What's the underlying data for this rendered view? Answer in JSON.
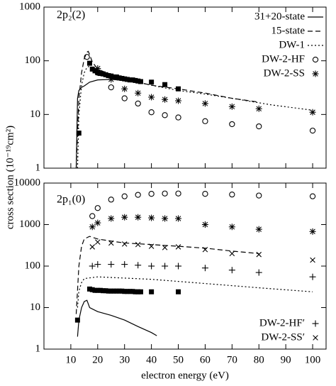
{
  "chart_data": [
    {
      "type": "line",
      "label": "2p₂(2)",
      "ylabel": "cross section (10⁻¹⁹cm²)",
      "log_y": true,
      "xlim": [
        0,
        105
      ],
      "xticks": [
        10,
        20,
        30,
        40,
        50,
        60,
        70,
        80,
        90,
        100
      ],
      "show_xtick_labels": false,
      "ylim": [
        1,
        1000
      ],
      "yticks": [
        1,
        10,
        100,
        1000
      ],
      "legend": "upper right",
      "series": [
        {
          "name": "31+20-state",
          "kind": "line",
          "dash": "solid",
          "color": "#000000",
          "x": [
            12,
            12.5,
            13,
            14,
            15,
            17,
            20,
            25,
            30,
            35,
            36
          ],
          "values": [
            1,
            20,
            28,
            32,
            34,
            40,
            44,
            45,
            43,
            40,
            38
          ]
        },
        {
          "name": "15-state",
          "kind": "line",
          "dash": "dashed",
          "color": "#000000",
          "x": [
            12,
            13,
            14,
            15,
            16,
            16.5,
            17,
            18,
            20,
            25,
            30,
            35,
            40,
            50,
            60,
            70,
            80
          ],
          "values": [
            1,
            20,
            60,
            110,
            145,
            150,
            130,
            95,
            70,
            55,
            45,
            40,
            35,
            30,
            25,
            20,
            17
          ]
        },
        {
          "name": "DW-1",
          "kind": "line",
          "dash": "dotted",
          "color": "#000000",
          "x": [
            12.5,
            13,
            14,
            15,
            16,
            17,
            18,
            20,
            25,
            30,
            40,
            50,
            60,
            70,
            85,
            100
          ],
          "values": [
            1,
            10,
            35,
            60,
            75,
            80,
            72,
            60,
            52,
            45,
            35,
            28,
            24,
            20,
            15,
            12
          ]
        },
        {
          "name": "DW-2-HF",
          "kind": "points",
          "marker": "circle",
          "color": "#000000",
          "x": [
            16,
            20,
            25,
            30,
            35,
            40,
            45,
            50,
            60,
            70,
            80,
            100
          ],
          "values": [
            118,
            60,
            32,
            20,
            16,
            11,
            9.7,
            8.8,
            7.5,
            6.6,
            6,
            5
          ]
        },
        {
          "name": "DW-2-SS",
          "kind": "points",
          "marker": "asterisk",
          "color": "#000000",
          "x": [
            20,
            25,
            30,
            35,
            40,
            45,
            50,
            60,
            70,
            80,
            100
          ],
          "values": [
            72,
            45,
            30,
            25,
            21,
            19,
            18,
            16,
            14,
            12.8,
            11
          ]
        },
        {
          "kind": "points",
          "marker": "square",
          "color": "#000000",
          "x": [
            13,
            17,
            18,
            19,
            20,
            21,
            22,
            23,
            24,
            25,
            26,
            27,
            28,
            29,
            30,
            31,
            32,
            33,
            34,
            35,
            36,
            40,
            45,
            50
          ],
          "values": [
            4.5,
            90,
            70,
            65,
            60,
            58,
            57,
            55,
            53,
            52,
            50,
            50,
            48,
            47,
            46,
            45,
            44,
            44,
            43,
            42,
            41,
            40,
            36,
            30
          ]
        }
      ]
    },
    {
      "type": "line",
      "label": "2p₁(0)",
      "xlabel": "electron energy (eV)",
      "log_y": true,
      "xlim": [
        0,
        105
      ],
      "xticks": [
        10,
        20,
        30,
        40,
        50,
        60,
        70,
        80,
        90,
        100
      ],
      "show_xtick_labels": true,
      "ylim": [
        1,
        10000
      ],
      "yticks": [
        1,
        10,
        100,
        1000,
        10000
      ],
      "legend": "lower right",
      "series": [
        {
          "kind": "line",
          "dash": "solid",
          "color": "#000000",
          "x": [
            12.5,
            13,
            14,
            15,
            16,
            17,
            20,
            25,
            30,
            35,
            40,
            42
          ],
          "values": [
            2,
            5,
            10,
            14,
            15,
            10,
            8,
            6.5,
            5,
            3.5,
            2.5,
            2.1
          ]
        },
        {
          "kind": "line",
          "dash": "dashed",
          "color": "#000000",
          "x": [
            12,
            13,
            14,
            15,
            17,
            20,
            25,
            30,
            40,
            50,
            60,
            70,
            80
          ],
          "values": [
            7,
            100,
            300,
            450,
            520,
            450,
            400,
            360,
            330,
            300,
            270,
            230,
            200
          ]
        },
        {
          "kind": "line",
          "dash": "dotted",
          "color": "#000000",
          "x": [
            12.5,
            13,
            14,
            15,
            20,
            40,
            60,
            80,
            100
          ],
          "values": [
            10,
            25,
            40,
            50,
            55,
            48,
            38,
            30,
            24
          ]
        },
        {
          "kind": "points",
          "marker": "circle",
          "color": "#000000",
          "x": [
            18,
            20,
            25,
            30,
            35,
            40,
            45,
            50,
            60,
            70,
            80,
            100
          ],
          "values": [
            1600,
            2500,
            4000,
            4800,
            5200,
            5500,
            5600,
            5600,
            5500,
            5300,
            5000,
            4800
          ]
        },
        {
          "kind": "points",
          "marker": "asterisk",
          "color": "#000000",
          "x": [
            18,
            20,
            25,
            30,
            35,
            40,
            45,
            50,
            60,
            70,
            80,
            100
          ],
          "values": [
            880,
            1100,
            1400,
            1500,
            1500,
            1450,
            1400,
            1400,
            1000,
            880,
            770,
            680
          ]
        },
        {
          "name": "DW-2-HF′",
          "kind": "points",
          "marker": "plus",
          "color": "#000000",
          "x": [
            18,
            20,
            25,
            30,
            35,
            40,
            45,
            50,
            60,
            70,
            80,
            100
          ],
          "values": [
            100,
            110,
            110,
            110,
            105,
            100,
            100,
            100,
            90,
            80,
            70,
            55
          ]
        },
        {
          "name": "DW-2-SS′",
          "kind": "points",
          "marker": "cross",
          "color": "#000000",
          "x": [
            18,
            20,
            25,
            30,
            35,
            40,
            45,
            50,
            60,
            70,
            80,
            100
          ],
          "values": [
            290,
            380,
            360,
            340,
            330,
            300,
            280,
            290,
            250,
            200,
            190,
            140
          ]
        },
        {
          "kind": "points",
          "marker": "square",
          "color": "#000000",
          "x": [
            12.5,
            17,
            18,
            19,
            20,
            21,
            22,
            23,
            24,
            25,
            26,
            27,
            28,
            29,
            30,
            31,
            32,
            33,
            34,
            35,
            36,
            40,
            50
          ],
          "values": [
            5,
            28,
            27,
            26,
            26,
            26,
            25.5,
            25.5,
            25,
            25,
            25,
            25,
            25,
            25,
            24.5,
            24.5,
            24.5,
            24.5,
            24,
            24,
            24,
            24,
            24
          ]
        }
      ]
    }
  ]
}
